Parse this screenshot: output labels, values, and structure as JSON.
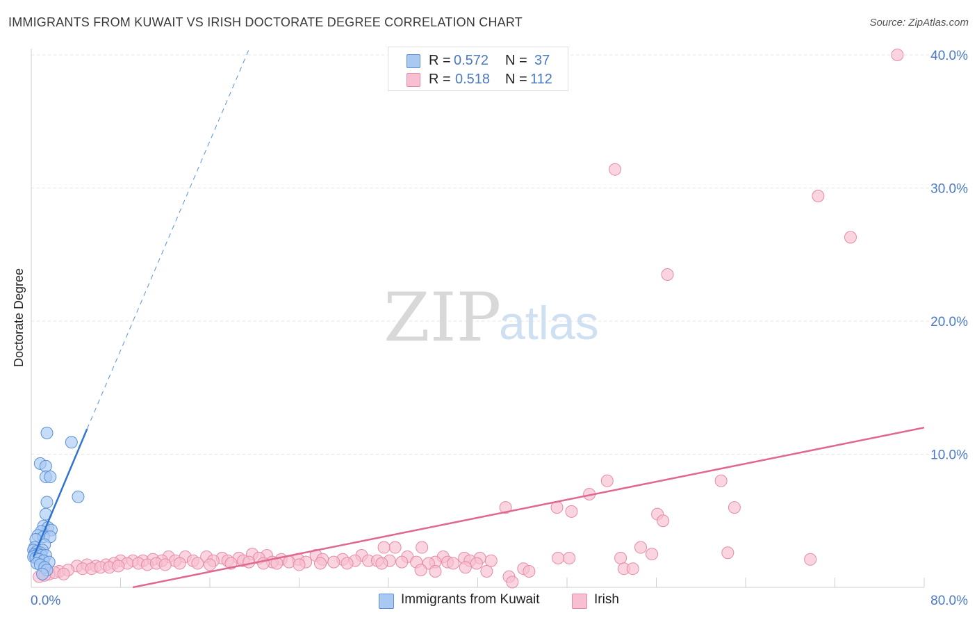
{
  "header": {
    "title": "IMMIGRANTS FROM KUWAIT VS IRISH DOCTORATE DEGREE CORRELATION CHART",
    "source": "Source: ZipAtlas.com"
  },
  "watermark": {
    "zip": "ZIP",
    "atlas": "atlas"
  },
  "legend": {
    "rows": [
      {
        "r_label": "R =",
        "r_value": "0.572",
        "n_label": "N =",
        "n_value": "37"
      },
      {
        "r_label": "R =",
        "r_value": "0.518",
        "n_label": "N =",
        "n_value": "112"
      }
    ]
  },
  "bottom_legend": {
    "series1": "Immigrants from Kuwait",
    "series2": "Irish"
  },
  "chart_data": {
    "type": "scatter",
    "title": "IMMIGRANTS FROM KUWAIT VS IRISH DOCTORATE DEGREE CORRELATION CHART",
    "xlabel": "",
    "ylabel": "Doctorate Degree",
    "xlim": [
      0,
      80
    ],
    "ylim": [
      0,
      40
    ],
    "x_tick_labels": [
      "0.0%",
      "80.0%"
    ],
    "y_ticks": [
      10,
      20,
      30,
      40
    ],
    "y_tick_labels": [
      "10.0%",
      "20.0%",
      "30.0%",
      "40.0%"
    ],
    "colors": {
      "kuwait_fill": "#a9c9f2",
      "kuwait_stroke": "#5b8fd6",
      "kuwait_line": "#2f74d0",
      "irish_fill": "#f8bfd0",
      "irish_stroke": "#e58aa6",
      "irish_line": "#e0678f",
      "grid": "#e4e4e4",
      "tick_text": "#4a78c7"
    },
    "series": [
      {
        "name": "Immigrants from Kuwait",
        "r": 0.572,
        "n": 37,
        "trend": {
          "solid": [
            [
              0.2,
              2.3
            ],
            [
              5.0,
              11.9
            ]
          ],
          "dashed": [
            [
              5.0,
              11.9
            ],
            [
              19.6,
              40.6
            ]
          ]
        },
        "points": [
          [
            1.4,
            11.6
          ],
          [
            3.6,
            10.9
          ],
          [
            0.8,
            9.3
          ],
          [
            1.3,
            9.1
          ],
          [
            1.3,
            8.3
          ],
          [
            1.7,
            8.3
          ],
          [
            4.2,
            6.8
          ],
          [
            1.4,
            6.4
          ],
          [
            1.3,
            5.5
          ],
          [
            1.1,
            4.6
          ],
          [
            1.5,
            4.5
          ],
          [
            1.8,
            4.3
          ],
          [
            0.9,
            4.2
          ],
          [
            0.6,
            3.9
          ],
          [
            1.1,
            3.8
          ],
          [
            1.7,
            3.8
          ],
          [
            0.4,
            3.6
          ],
          [
            1.2,
            3.2
          ],
          [
            0.3,
            3.0
          ],
          [
            0.2,
            2.8
          ],
          [
            1.0,
            2.8
          ],
          [
            0.5,
            2.7
          ],
          [
            0.8,
            2.6
          ],
          [
            0.3,
            2.5
          ],
          [
            0.6,
            2.5
          ],
          [
            0.9,
            2.4
          ],
          [
            1.3,
            2.4
          ],
          [
            0.2,
            2.3
          ],
          [
            0.4,
            2.2
          ],
          [
            0.7,
            2.1
          ],
          [
            1.1,
            2.0
          ],
          [
            1.6,
            1.9
          ],
          [
            0.5,
            1.8
          ],
          [
            0.8,
            1.7
          ],
          [
            1.2,
            1.5
          ],
          [
            1.4,
            1.3
          ],
          [
            1.0,
            1.0
          ]
        ]
      },
      {
        "name": "Irish",
        "r": 0.518,
        "n": 112,
        "trend": {
          "solid": [
            [
              9.1,
              0.0
            ],
            [
              80.0,
              12.0
            ]
          ]
        },
        "points": [
          [
            77.6,
            40.0
          ],
          [
            52.3,
            31.4
          ],
          [
            70.5,
            29.4
          ],
          [
            73.4,
            26.3
          ],
          [
            57.0,
            23.5
          ],
          [
            51.6,
            8.0
          ],
          [
            61.8,
            8.0
          ],
          [
            50.0,
            7.0
          ],
          [
            63.0,
            6.0
          ],
          [
            42.5,
            6.0
          ],
          [
            47.1,
            6.0
          ],
          [
            48.4,
            5.7
          ],
          [
            56.1,
            5.5
          ],
          [
            56.6,
            5.0
          ],
          [
            32.6,
            3.0
          ],
          [
            35.0,
            3.0
          ],
          [
            31.6,
            3.0
          ],
          [
            54.6,
            3.0
          ],
          [
            55.6,
            2.5
          ],
          [
            62.4,
            2.6
          ],
          [
            19.8,
            2.5
          ],
          [
            21.1,
            2.4
          ],
          [
            25.5,
            2.4
          ],
          [
            29.6,
            2.4
          ],
          [
            33.7,
            2.3
          ],
          [
            36.9,
            2.3
          ],
          [
            38.8,
            2.2
          ],
          [
            40.2,
            2.2
          ],
          [
            47.2,
            2.2
          ],
          [
            48.2,
            2.2
          ],
          [
            52.8,
            2.2
          ],
          [
            69.8,
            2.1
          ],
          [
            12.3,
            2.3
          ],
          [
            13.8,
            2.3
          ],
          [
            15.7,
            2.3
          ],
          [
            17.1,
            2.2
          ],
          [
            18.6,
            2.2
          ],
          [
            20.4,
            2.2
          ],
          [
            22.4,
            2.1
          ],
          [
            23.9,
            2.1
          ],
          [
            26.1,
            2.1
          ],
          [
            27.9,
            2.1
          ],
          [
            29.0,
            2.0
          ],
          [
            30.2,
            2.0
          ],
          [
            31.0,
            2.0
          ],
          [
            32.1,
            2.0
          ],
          [
            33.2,
            1.9
          ],
          [
            34.5,
            1.9
          ],
          [
            36.2,
            1.9
          ],
          [
            37.3,
            1.9
          ],
          [
            39.3,
            2.0
          ],
          [
            41.2,
            2.0
          ],
          [
            8.0,
            2.0
          ],
          [
            9.1,
            2.0
          ],
          [
            10.0,
            2.0
          ],
          [
            10.9,
            2.1
          ],
          [
            11.7,
            2.0
          ],
          [
            12.9,
            2.0
          ],
          [
            14.5,
            2.0
          ],
          [
            16.3,
            2.0
          ],
          [
            17.6,
            2.0
          ],
          [
            19.0,
            2.0
          ],
          [
            21.6,
            1.9
          ],
          [
            23.1,
            1.9
          ],
          [
            24.6,
            1.9
          ],
          [
            25.9,
            1.8
          ],
          [
            27.1,
            1.9
          ],
          [
            28.3,
            1.8
          ],
          [
            31.4,
            1.8
          ],
          [
            35.6,
            1.8
          ],
          [
            37.8,
            1.8
          ],
          [
            39.9,
            1.8
          ],
          [
            4.1,
            1.6
          ],
          [
            5.0,
            1.7
          ],
          [
            5.8,
            1.6
          ],
          [
            6.7,
            1.7
          ],
          [
            7.4,
            1.8
          ],
          [
            8.6,
            1.8
          ],
          [
            9.6,
            1.8
          ],
          [
            10.4,
            1.7
          ],
          [
            11.2,
            1.8
          ],
          [
            12.0,
            1.7
          ],
          [
            13.3,
            1.8
          ],
          [
            14.9,
            1.8
          ],
          [
            16.0,
            1.7
          ],
          [
            17.9,
            1.8
          ],
          [
            19.5,
            1.9
          ],
          [
            20.8,
            1.8
          ],
          [
            22.0,
            1.8
          ],
          [
            24.0,
            1.7
          ],
          [
            2.5,
            1.2
          ],
          [
            3.3,
            1.3
          ],
          [
            4.6,
            1.4
          ],
          [
            5.4,
            1.4
          ],
          [
            6.2,
            1.5
          ],
          [
            7.0,
            1.5
          ],
          [
            7.8,
            1.6
          ],
          [
            1.6,
            1.0
          ],
          [
            2.1,
            1.1
          ],
          [
            2.9,
            1.0
          ],
          [
            0.7,
            0.8
          ],
          [
            1.2,
            0.9
          ],
          [
            34.9,
            1.3
          ],
          [
            36.2,
            1.2
          ],
          [
            38.9,
            1.5
          ],
          [
            40.8,
            1.2
          ],
          [
            44.1,
            1.4
          ],
          [
            44.6,
            1.2
          ],
          [
            53.1,
            1.4
          ],
          [
            53.9,
            1.4
          ],
          [
            42.8,
            0.8
          ],
          [
            43.1,
            0.4
          ]
        ]
      }
    ]
  }
}
